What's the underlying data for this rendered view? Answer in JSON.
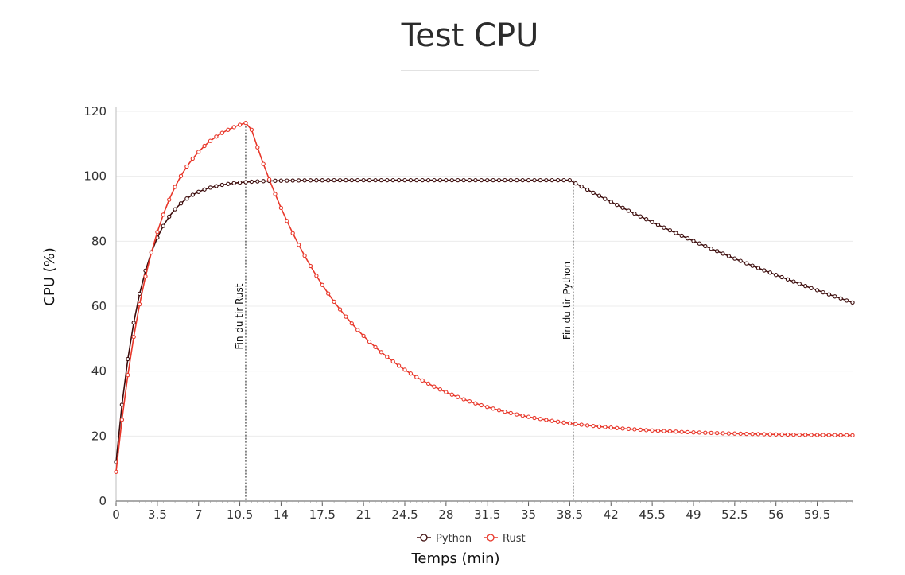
{
  "page": {
    "title": "Test CPU"
  },
  "chart_data": {
    "type": "line",
    "title": "Test CPU",
    "xlabel": "Temps (min)",
    "ylabel": "CPU (%)",
    "xlim": [
      0,
      62.5
    ],
    "ylim": [
      0,
      120
    ],
    "x_ticks": [
      "0",
      "3.5",
      "7",
      "10.5",
      "14",
      "17.5",
      "21",
      "24.5",
      "28",
      "31.5",
      "35",
      "38.5",
      "42",
      "45.5",
      "49",
      "52.5",
      "56",
      "59.5"
    ],
    "y_ticks": [
      0,
      20,
      40,
      60,
      80,
      100,
      120
    ],
    "grid": {
      "horizontal": true,
      "vertical": false
    },
    "legend": "bottom-center",
    "series": [
      {
        "name": "Python",
        "color": "#3d0c0c",
        "marker": "circle",
        "x_step": 0.5,
        "x_start": 0,
        "model": "0-38.5: 12 + 86.8*(1-exp(-t/2.2)); 38.5-62.5: 98.8*exp(-(t-38.5)/50)"
      },
      {
        "name": "Rust",
        "color": "#e8372a",
        "marker": "circle",
        "x_step": 0.5,
        "x_start": 0,
        "model": "0-11: 9 + 111*(1-exp(-t/3.2)); 11-62.5: 20 + 100*exp(-(t-11)/8.5)"
      }
    ],
    "annotations": [
      {
        "x": 11,
        "label": "Fin du tir Rust",
        "style": "dashed-vertical"
      },
      {
        "x": 38.8,
        "label": "Fin du tir Python",
        "style": "dashed-vertical"
      }
    ]
  }
}
